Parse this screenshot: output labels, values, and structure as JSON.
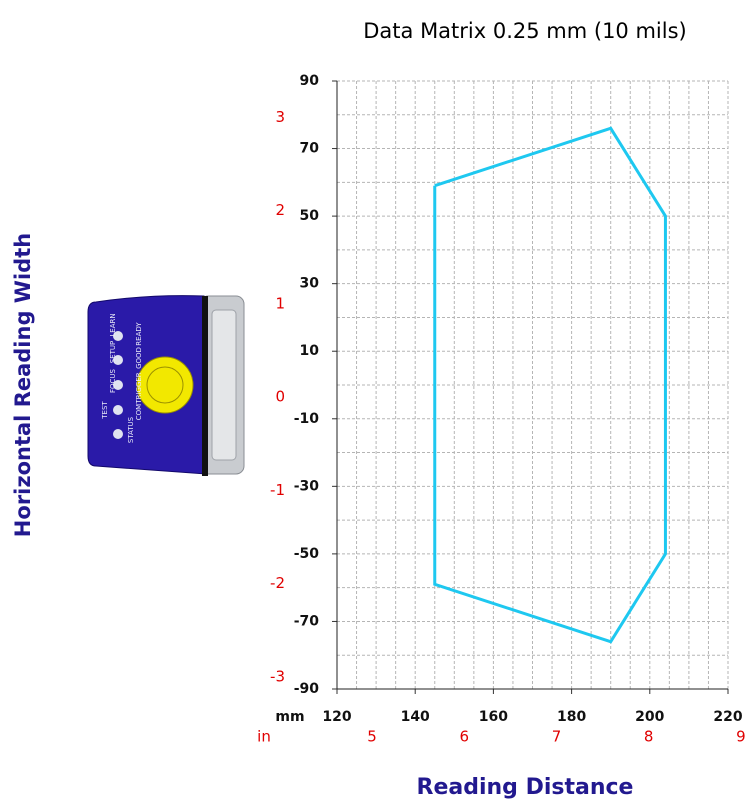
{
  "chart_data": {
    "type": "line",
    "title": "Data Matrix 0.25 mm (10 mils)",
    "x_label": "Reading Distance",
    "y_label": "Horizontal Reading Width",
    "x_unit": "mm",
    "x2_unit": "in",
    "x": [
      145,
      190,
      204,
      204,
      190,
      145,
      145
    ],
    "series": [
      {
        "color": "#1ec8f0",
        "values": [
          59,
          76,
          50,
          -50,
          -76,
          -59,
          59
        ]
      }
    ],
    "xlim": [
      120,
      220
    ],
    "xticks": [
      120,
      140,
      160,
      180,
      200,
      220
    ],
    "x_minor_ticks": [
      125,
      130,
      135,
      145,
      150,
      155,
      165,
      170,
      175,
      185,
      190,
      195,
      205,
      210,
      215
    ],
    "ylim": [
      -90,
      90
    ],
    "yticks": [
      90,
      70,
      50,
      30,
      10,
      -10,
      -30,
      -50,
      -70,
      -90
    ],
    "y_minor_ticks": [
      80,
      60,
      40,
      20,
      0,
      -20,
      -40,
      -60,
      -80
    ],
    "x2lim": [
      4.62,
      8.86
    ],
    "x2ticks": [
      5,
      6,
      7,
      8,
      9
    ],
    "y2lim": [
      -3.13,
      3.39
    ],
    "y2ticks": [
      3,
      2,
      1,
      0,
      -1,
      -2,
      -3
    ],
    "grid": true
  },
  "device": {
    "labels": [
      "TEST",
      "FOCUS",
      "SETUP",
      "LEARN",
      "STATUS",
      "COM",
      "TRIGGER",
      "GOOD",
      "READY"
    ]
  }
}
